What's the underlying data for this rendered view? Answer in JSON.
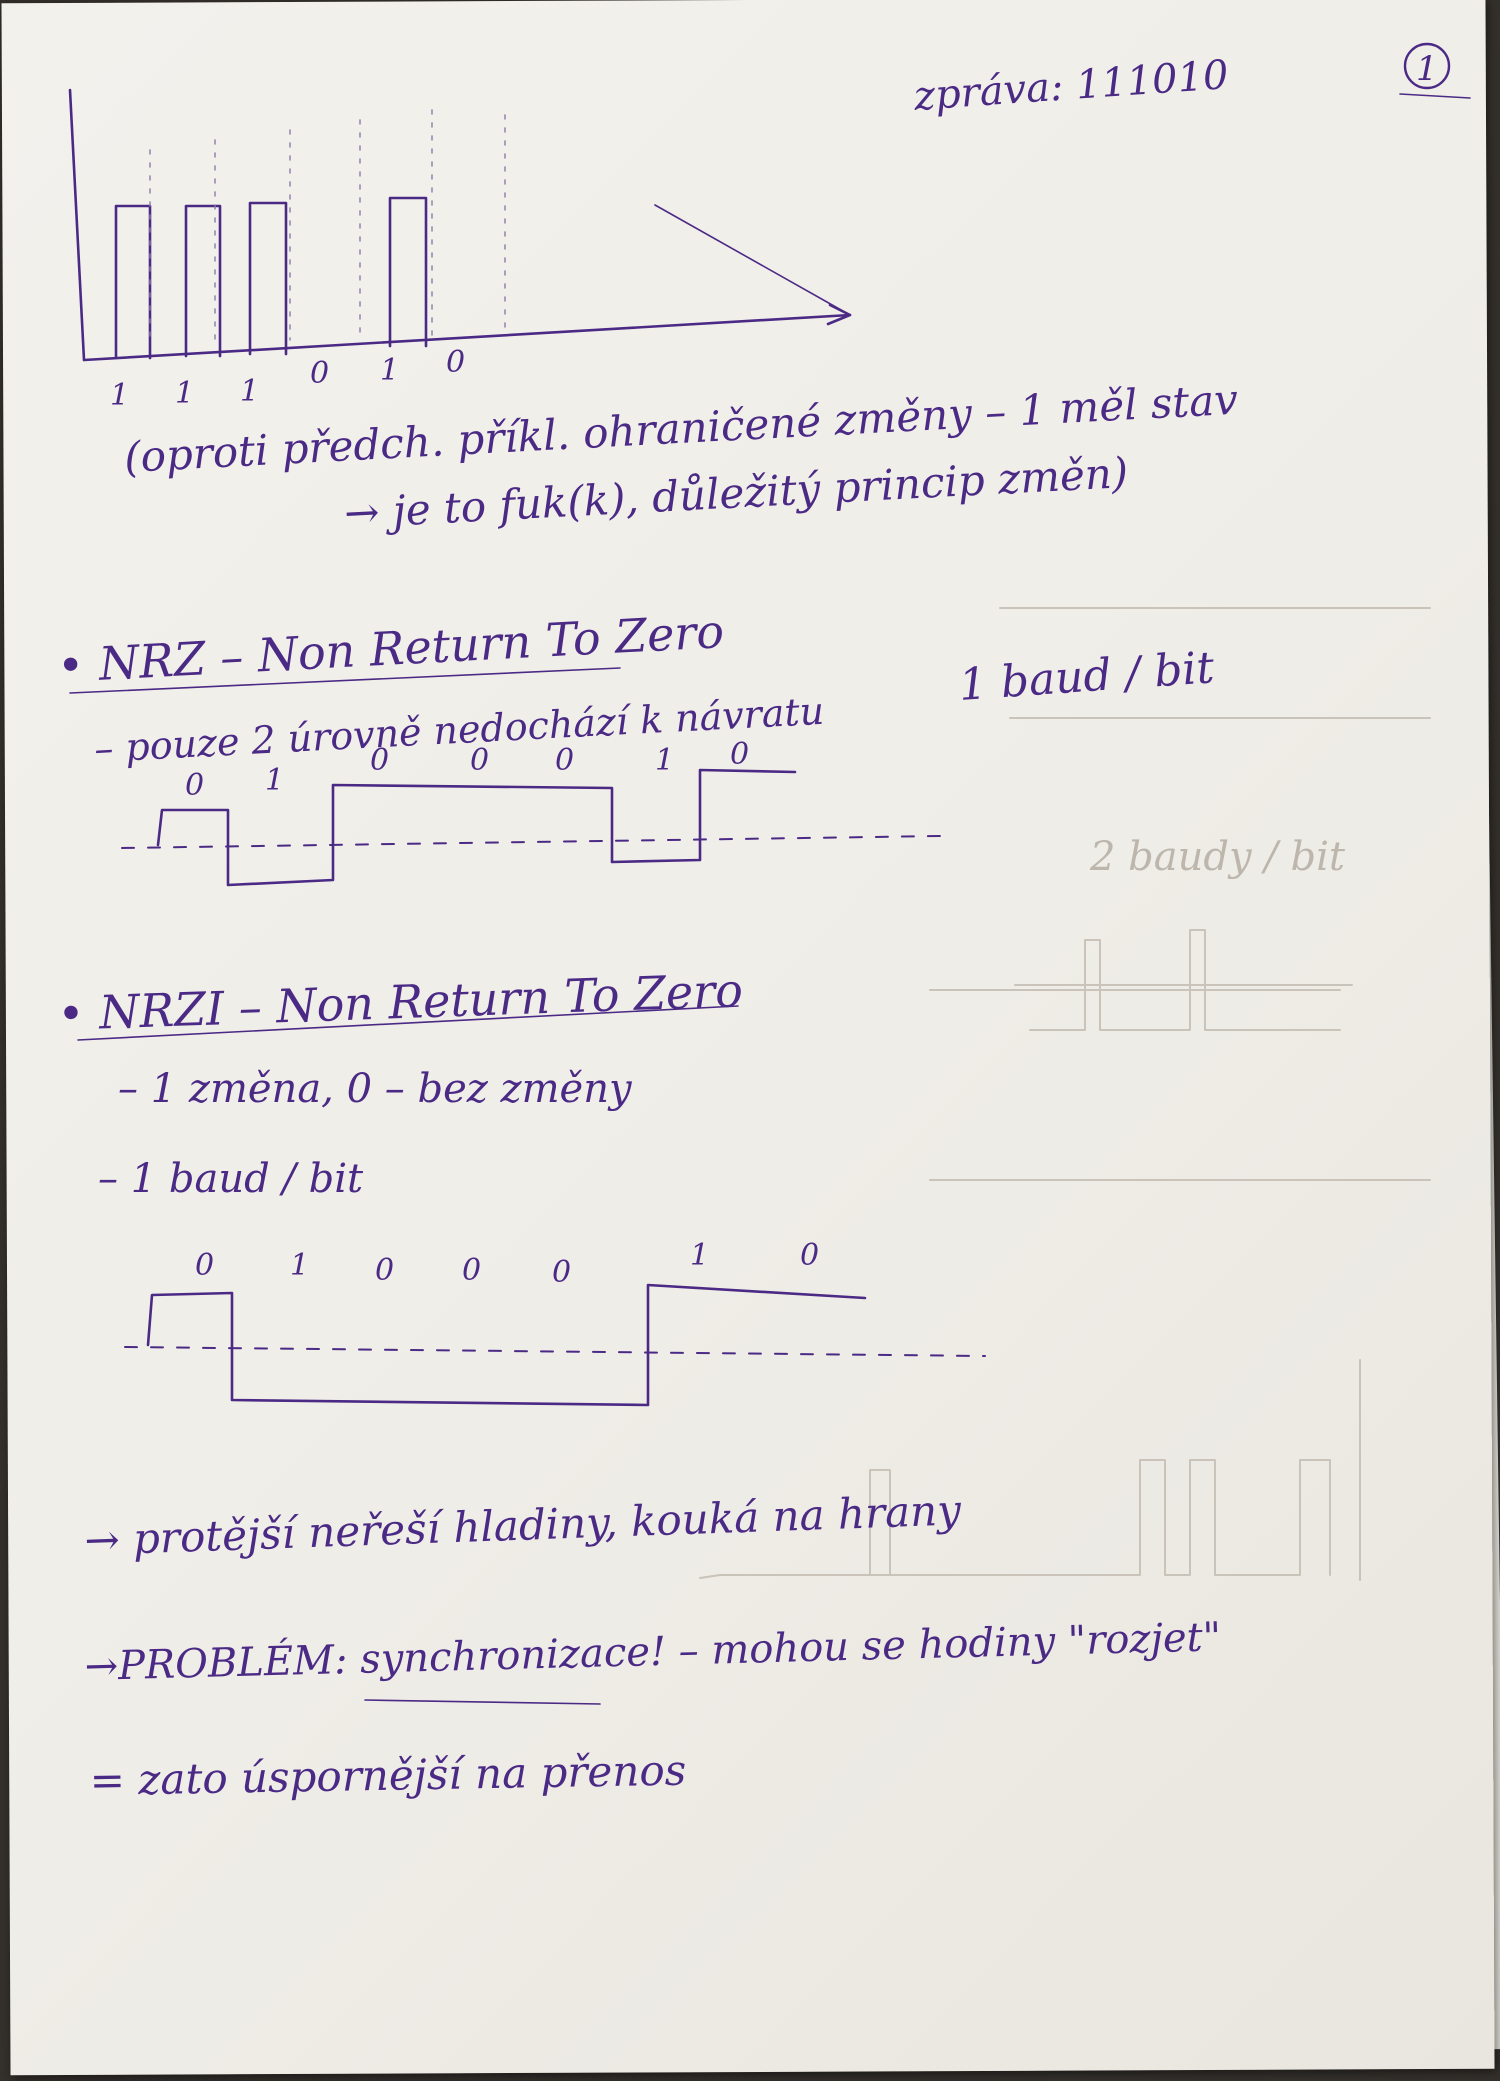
{
  "page": {
    "header_message": "zpráva: 111010",
    "page_number": "1"
  },
  "section_intro": {
    "bits": [
      "1",
      "1",
      "1",
      "0",
      "1",
      "0"
    ],
    "note_line1": "(oproti předch. příkl. ohraničené změny – 1 měl stav",
    "note_line2": "→ je to fuk(k), důležitý princip změn)"
  },
  "section_nrz": {
    "title": "• NRZ – Non Return To Zero",
    "subtitle_right": "1 baud / bit",
    "line1": "– pouze 2 úrovně nedochází k návratu",
    "bits": [
      "0",
      "1",
      "0",
      "0",
      "0",
      "1",
      "0"
    ]
  },
  "section_nrzi": {
    "title": "• NRZI – Non Return To Zero",
    "line1": "– 1 změna, 0 – bez změny",
    "line2": "– 1 baud / bit",
    "bits": [
      "0",
      "1",
      "0",
      "0",
      "0",
      "1",
      "0"
    ]
  },
  "conclusions": {
    "line1": "→ protější neřeší hladiny, kouká na hrany",
    "line2": "→PROBLÉM: synchronizace! – mohou se hodiny \"rozjet\"",
    "line3": "= zato úspornější na přenos"
  },
  "ghost_text": {
    "rate": "2 baudy / bit"
  },
  "colors": {
    "ink": "#4b2a86",
    "paper": "#f1efea",
    "bleed_through": "#c9c3ba"
  }
}
